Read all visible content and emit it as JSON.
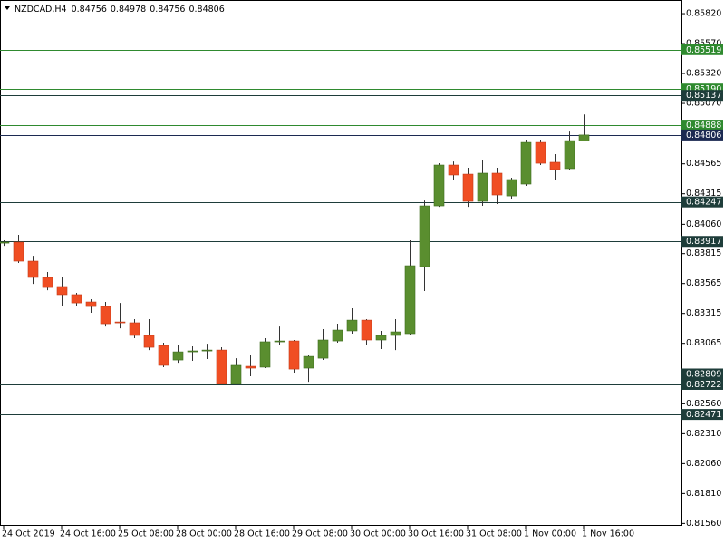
{
  "chart_data": {
    "type": "candlestick",
    "title": "NZDCAD,H4",
    "header_values": [
      0.84756,
      0.84978,
      0.84756,
      0.84806
    ],
    "categories": [
      "24 Oct 2019",
      null,
      null,
      null,
      "24 Oct 16:00",
      null,
      null,
      null,
      "25 Oct 08:00",
      null,
      null,
      null,
      "28 Oct 00:00",
      null,
      null,
      null,
      "28 Oct 16:00",
      null,
      null,
      null,
      "29 Oct 08:00",
      null,
      null,
      null,
      "30 Oct 00:00",
      null,
      null,
      null,
      "30 Oct 16:00",
      null,
      null,
      null,
      "31 Oct 08:00",
      null,
      null,
      null,
      "1 Nov 00:00",
      null,
      null,
      null,
      "1 Nov 16:00"
    ],
    "open": [
      0.83903,
      0.83911,
      0.83752,
      0.83616,
      0.8354,
      0.83472,
      0.83411,
      0.83373,
      0.83244,
      0.83237,
      0.83131,
      0.83047,
      0.82926,
      0.82994,
      0.83002,
      0.83009,
      0.82729,
      0.82873,
      0.82866,
      0.83078,
      0.83085,
      0.82858,
      0.82941,
      0.83085,
      0.83169,
      0.83259,
      0.83093,
      0.83131,
      0.83146,
      0.83706,
      0.84214,
      0.84555,
      0.84479,
      0.84252,
      0.84487,
      0.84297,
      0.84396,
      0.84744,
      0.84578,
      0.84525,
      0.84756
    ],
    "high": [
      0.83926,
      0.83972,
      0.83797,
      0.83661,
      0.83623,
      0.83487,
      0.83434,
      0.83411,
      0.83403,
      0.83267,
      0.83267,
      0.8307,
      0.83055,
      0.8304,
      0.83062,
      0.83032,
      0.82941,
      0.82964,
      0.83108,
      0.83206,
      0.83093,
      0.82972,
      0.83184,
      0.83229,
      0.83358,
      0.83267,
      0.83169,
      0.83267,
      0.83926,
      0.84259,
      0.8457,
      0.84585,
      0.84532,
      0.84593,
      0.84532,
      0.84449,
      0.84767,
      0.84767,
      0.84646,
      0.84835,
      0.84978
    ],
    "low": [
      0.8388,
      0.83737,
      0.83562,
      0.83509,
      0.83381,
      0.83381,
      0.8332,
      0.83206,
      0.83191,
      0.83108,
      0.83009,
      0.82866,
      0.82903,
      0.82919,
      0.82934,
      0.82722,
      0.82729,
      0.8279,
      0.82858,
      0.83055,
      0.8282,
      0.82744,
      0.82926,
      0.8307,
      0.83146,
      0.83055,
      0.83017,
      0.83009,
      0.83131,
      0.83502,
      0.84206,
      0.84426,
      0.84206,
      0.84214,
      0.84229,
      0.84267,
      0.84381,
      0.84555,
      0.84434,
      0.84517,
      0.84756
    ],
    "close": [
      0.83911,
      0.83752,
      0.83616,
      0.83532,
      0.83472,
      0.83403,
      0.83373,
      0.83229,
      0.83237,
      0.83131,
      0.83032,
      0.82881,
      0.82994,
      0.83002,
      0.83009,
      0.82729,
      0.82881,
      0.82858,
      0.83078,
      0.83085,
      0.8285,
      0.82956,
      0.83093,
      0.83176,
      0.83259,
      0.83093,
      0.83131,
      0.83161,
      0.83714,
      0.84214,
      0.84555,
      0.84472,
      0.84252,
      0.84487,
      0.84305,
      0.84434,
      0.84744,
      0.8457,
      0.84517,
      0.84759,
      0.84806
    ],
    "up_color": "#5a8e2f",
    "down_color": "#f04e23",
    "ylim": [
      0.8154,
      0.85934
    ],
    "yticks": [
      {
        "value": 0.8582,
        "label": "0.85820"
      },
      {
        "value": 0.8557,
        "label": "0.85570"
      },
      {
        "value": 0.8532,
        "label": "0.85320"
      },
      {
        "value": 0.8507,
        "label": "0.85070"
      },
      {
        "value": 0.84565,
        "label": "0.84565"
      },
      {
        "value": 0.84315,
        "label": "0.84315"
      },
      {
        "value": 0.8406,
        "label": "0.84060"
      },
      {
        "value": 0.83815,
        "label": "0.83815"
      },
      {
        "value": 0.83565,
        "label": "0.83565"
      },
      {
        "value": 0.83315,
        "label": "0.83315"
      },
      {
        "value": 0.83065,
        "label": "0.83065"
      },
      {
        "value": 0.8256,
        "label": "0.82560"
      },
      {
        "value": 0.8231,
        "label": "0.82310"
      },
      {
        "value": 0.8206,
        "label": "0.82060"
      },
      {
        "value": 0.8181,
        "label": "0.81810"
      },
      {
        "value": 0.8156,
        "label": "0.81560"
      }
    ],
    "levels": [
      {
        "value": 0.85519,
        "label": "0.85519",
        "color": "#2f8a2f"
      },
      {
        "value": 0.8519,
        "label": "0.85190",
        "color": "#2f8a2f"
      },
      {
        "value": 0.85137,
        "label": "0.85137",
        "color": "#1e3d3a"
      },
      {
        "value": 0.84888,
        "label": "0.84888",
        "color": "#2f8a2f"
      },
      {
        "value": 0.84806,
        "label": "0.84806",
        "color": "#1c2a52"
      },
      {
        "value": 0.84247,
        "label": "0.84247",
        "color": "#1e3d3a"
      },
      {
        "value": 0.83917,
        "label": "0.83917",
        "color": "#1e3d3a"
      },
      {
        "value": 0.82809,
        "label": "0.82809",
        "color": "#1e3d3a"
      },
      {
        "value": 0.82722,
        "label": "0.82722",
        "color": "#1e3d3a"
      },
      {
        "value": 0.82471,
        "label": "0.82471",
        "color": "#1e3d3a"
      }
    ]
  }
}
